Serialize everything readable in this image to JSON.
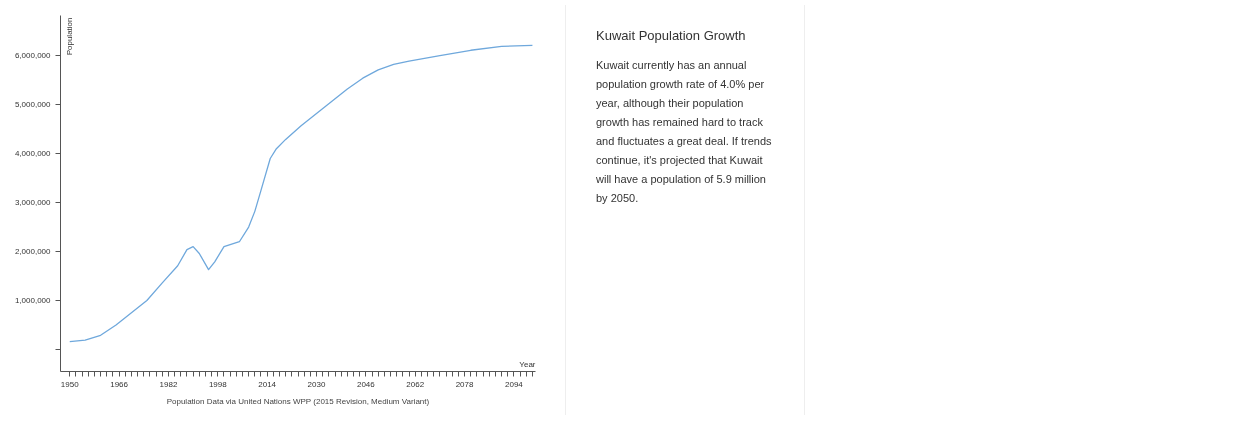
{
  "chart_data": {
    "type": "line",
    "title": "Kuwait Population Growth",
    "xlabel": "Year",
    "ylabel": "Population",
    "annotations": [
      "Kuwait currently has an annual population growth rate of 4.0% per year, although their population growth has remained hard to track and fluctuates a great deal. If trends continue, it's projected that Kuwait will have a population of 5.9 million by 2050.",
      "Population Data via United Nations WPP (2015 Revision, Medium Variant)"
    ],
    "x": [
      1950,
      1955,
      1960,
      1965,
      1970,
      1975,
      1980,
      1985,
      1988,
      1990,
      1992,
      1995,
      1997,
      2000,
      2005,
      2008,
      2010,
      2012,
      2015,
      2017,
      2020,
      2025,
      2030,
      2035,
      2040,
      2045,
      2050,
      2055,
      2060,
      2070,
      2080,
      2090,
      2100
    ],
    "series": [
      {
        "color": "#6fa8dc",
        "values": [
          160000,
          190000,
          290000,
          500000,
          750000,
          1000000,
          1360000,
          1710000,
          2040000,
          2100000,
          1960000,
          1630000,
          1790000,
          2100000,
          2200000,
          2500000,
          2820000,
          3250000,
          3900000,
          4100000,
          4290000,
          4570000,
          4820000,
          5070000,
          5320000,
          5540000,
          5710000,
          5820000,
          5890000,
          6000000,
          6110000,
          6190000,
          6210000
        ]
      }
    ],
    "xlim": [
      1947,
      2101
    ],
    "ylim": [
      -450000,
      6820000
    ],
    "xticks": [
      1950,
      {
        "value": 1952,
        "label": null
      },
      {
        "value": 1954,
        "label": null
      },
      {
        "value": 1956,
        "label": null
      },
      {
        "value": 1958,
        "label": null
      },
      {
        "value": 1960,
        "label": null
      },
      {
        "value": 1962,
        "label": null
      },
      {
        "value": 1964,
        "label": null
      },
      1966,
      {
        "value": 1968,
        "label": null
      },
      {
        "value": 1970,
        "label": null
      },
      {
        "value": 1972,
        "label": null
      },
      {
        "value": 1974,
        "label": null
      },
      {
        "value": 1976,
        "label": null
      },
      {
        "value": 1978,
        "label": null
      },
      {
        "value": 1980,
        "label": null
      },
      1982,
      {
        "value": 1984,
        "label": null
      },
      {
        "value": 1986,
        "label": null
      },
      {
        "value": 1988,
        "label": null
      },
      {
        "value": 1990,
        "label": null
      },
      {
        "value": 1992,
        "label": null
      },
      {
        "value": 1994,
        "label": null
      },
      {
        "value": 1996,
        "label": null
      },
      1998,
      {
        "value": 2000,
        "label": null
      },
      {
        "value": 2002,
        "label": null
      },
      {
        "value": 2004,
        "label": null
      },
      {
        "value": 2006,
        "label": null
      },
      {
        "value": 2008,
        "label": null
      },
      {
        "value": 2010,
        "label": null
      },
      {
        "value": 2012,
        "label": null
      },
      2014,
      {
        "value": 2016,
        "label": null
      },
      {
        "value": 2018,
        "label": null
      },
      {
        "value": 2020,
        "label": null
      },
      {
        "value": 2022,
        "label": null
      },
      {
        "value": 2024,
        "label": null
      },
      {
        "value": 2026,
        "label": null
      },
      {
        "value": 2028,
        "label": null
      },
      2030,
      {
        "value": 2032,
        "label": null
      },
      {
        "value": 2034,
        "label": null
      },
      {
        "value": 2036,
        "label": null
      },
      {
        "value": 2038,
        "label": null
      },
      {
        "value": 2040,
        "label": null
      },
      {
        "value": 2042,
        "label": null
      },
      {
        "value": 2044,
        "label": null
      },
      2046,
      {
        "value": 2048,
        "label": null
      },
      {
        "value": 2050,
        "label": null
      },
      {
        "value": 2052,
        "label": null
      },
      {
        "value": 2054,
        "label": null
      },
      {
        "value": 2056,
        "label": null
      },
      {
        "value": 2058,
        "label": null
      },
      {
        "value": 2060,
        "label": null
      },
      2062,
      {
        "value": 2064,
        "label": null
      },
      {
        "value": 2066,
        "label": null
      },
      {
        "value": 2068,
        "label": null
      },
      {
        "value": 2070,
        "label": null
      },
      {
        "value": 2072,
        "label": null
      },
      {
        "value": 2074,
        "label": null
      },
      {
        "value": 2076,
        "label": null
      },
      2078,
      {
        "value": 2080,
        "label": null
      },
      {
        "value": 2082,
        "label": null
      },
      {
        "value": 2084,
        "label": null
      },
      {
        "value": 2086,
        "label": null
      },
      {
        "value": 2088,
        "label": null
      },
      {
        "value": 2090,
        "label": null
      },
      {
        "value": 2092,
        "label": null
      },
      2094,
      {
        "value": 2096,
        "label": null
      },
      {
        "value": 2098,
        "label": null
      },
      {
        "value": 2100,
        "label": null
      }
    ],
    "yticks": [
      {
        "value": 0,
        "label": null
      },
      {
        "value": 1000000,
        "label": "1,000,000"
      },
      {
        "value": 2000000,
        "label": "2,000,000"
      },
      {
        "value": 3000000,
        "label": "3,000,000"
      },
      {
        "value": 4000000,
        "label": "4,000,000"
      },
      {
        "value": 5000000,
        "label": "5,000,000"
      },
      {
        "value": 6000000,
        "label": "6,000,000"
      }
    ],
    "grid": false,
    "marker": "none",
    "line_style": "solid"
  }
}
